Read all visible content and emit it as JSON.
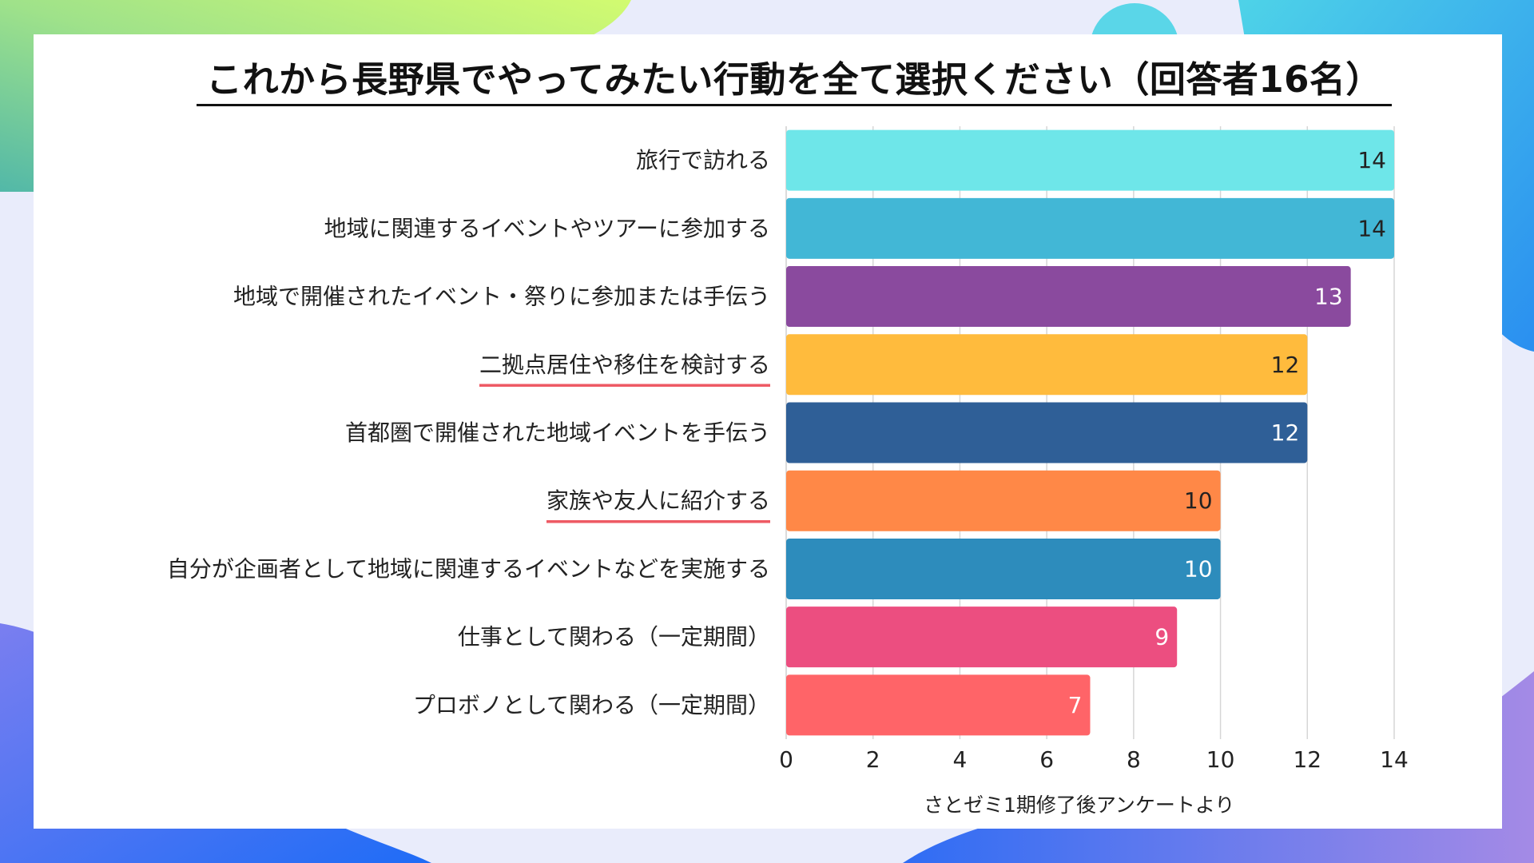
{
  "title": "これから長野県でやってみたい行動を全て選択ください（回答者16名）",
  "source_note": "さとゼミ1期修了後アンケートより",
  "chart_data": {
    "type": "bar",
    "orientation": "horizontal",
    "categories": [
      "旅行で訪れる",
      "地域に関連するイベントやツアーに参加する",
      "地域で開催されたイベント・祭りに参加または手伝う",
      "二拠点居住や移住を検討する",
      "首都圏で開催された地域イベントを手伝う",
      "家族や友人に紹介する",
      "自分が企画者として地域に関連するイベントなどを実施する",
      "仕事として関わる（一定期間）",
      "プロボノとして関わる（一定期間）"
    ],
    "values": [
      14,
      14,
      13,
      12,
      12,
      10,
      10,
      9,
      7
    ],
    "bar_colors": [
      "#6ee6e9",
      "#42b7d6",
      "#8a4a9e",
      "#ffbb3d",
      "#2f5f97",
      "#ff8847",
      "#2d8cbc",
      "#ec4e80",
      "#ff6468"
    ],
    "value_label_colors": [
      "#222222",
      "#222222",
      "#ffffff",
      "#222222",
      "#ffffff",
      "#222222",
      "#ffffff",
      "#ffffff",
      "#ffffff"
    ],
    "underlined_categories": [
      3,
      5
    ],
    "underline_color": "#ee5a64",
    "xlim": [
      0,
      14
    ],
    "xticks": [
      0,
      2,
      4,
      6,
      8,
      10,
      12,
      14
    ],
    "grid": true
  }
}
